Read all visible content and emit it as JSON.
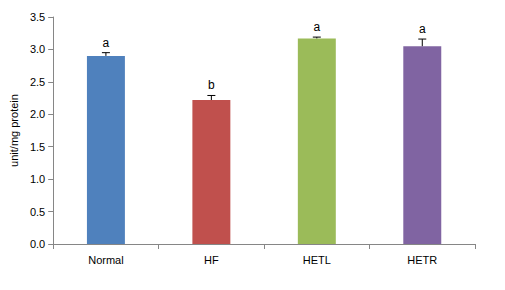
{
  "chart_data": {
    "type": "bar",
    "categories": [
      "Normal",
      "HF",
      "HETL",
      "HETR"
    ],
    "values": [
      2.9,
      2.22,
      3.17,
      3.05
    ],
    "errors": [
      0.05,
      0.07,
      0.02,
      0.11
    ],
    "annotations": [
      "a",
      "b",
      "a",
      "a"
    ],
    "colors": [
      "#4f81bd",
      "#c0504d",
      "#9bbb59",
      "#8064a2"
    ],
    "error_color": "#000000",
    "y_label": "unit/mg protein",
    "ylim": [
      0,
      3.5
    ],
    "yticks": [
      {
        "value": 0,
        "label": "0.0"
      },
      {
        "value": 0.5,
        "label": "0.5"
      },
      {
        "value": 1,
        "label": "1.0"
      },
      {
        "value": 1.5,
        "label": "1.5"
      },
      {
        "value": 2,
        "label": "2.0"
      },
      {
        "value": 2.5,
        "label": "2.5"
      },
      {
        "value": 3,
        "label": "3.0"
      },
      {
        "value": 3.5,
        "label": "3.5"
      }
    ],
    "grid": false
  }
}
